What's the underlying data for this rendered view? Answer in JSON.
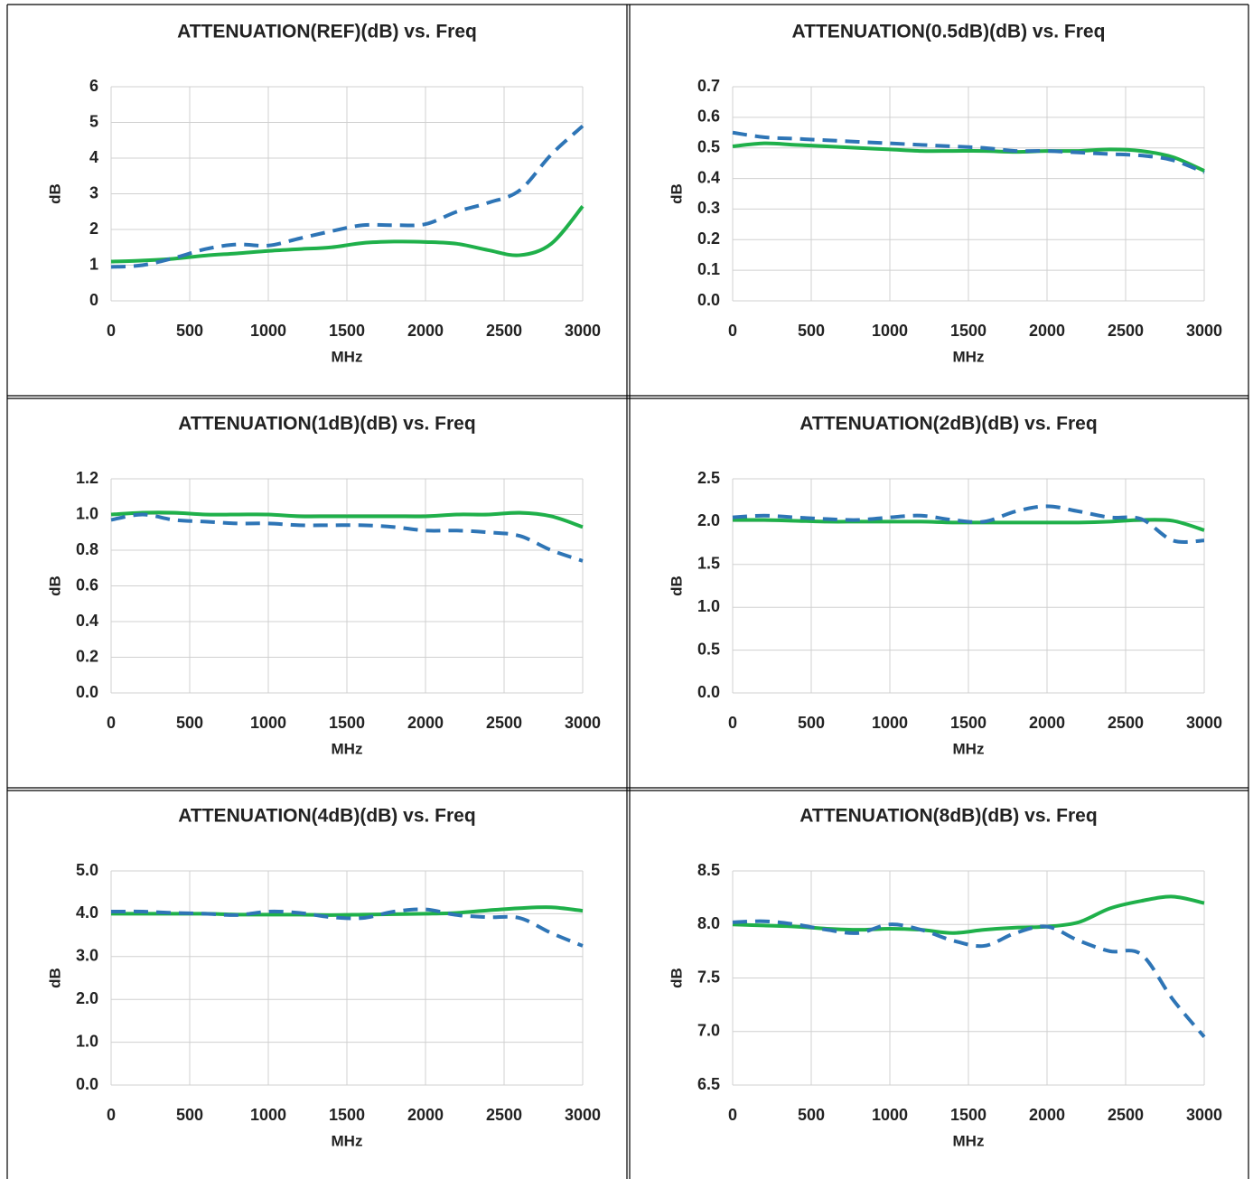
{
  "chart_data": [
    {
      "type": "line",
      "title": "ATTENUATION(REF)(dB) vs. Freq",
      "xlabel": "MHz",
      "ylabel": "dB",
      "x": [
        0,
        200,
        400,
        600,
        800,
        1000,
        1200,
        1400,
        1600,
        1800,
        2000,
        2200,
        2400,
        2600,
        2800,
        3000
      ],
      "series": [
        {
          "color": "#1fb04a",
          "dash": false,
          "values": [
            1.1,
            1.13,
            1.18,
            1.27,
            1.33,
            1.4,
            1.45,
            1.5,
            1.62,
            1.66,
            1.65,
            1.6,
            1.42,
            1.28,
            1.6,
            2.65
          ]
        },
        {
          "color": "#2e75b6",
          "dash": true,
          "values": [
            0.95,
            1.0,
            1.2,
            1.45,
            1.58,
            1.55,
            1.75,
            1.95,
            2.12,
            2.12,
            2.15,
            2.5,
            2.75,
            3.1,
            4.1,
            4.9
          ]
        }
      ],
      "xlim": [
        0,
        3000
      ],
      "xticks": [
        0,
        500,
        1000,
        1500,
        2000,
        2500,
        3000
      ],
      "ylim": [
        0,
        6
      ],
      "yticks": [
        0,
        1,
        2,
        3,
        4,
        5,
        6
      ],
      "grid": true
    },
    {
      "type": "line",
      "title": "ATTENUATION(0.5dB)(dB) vs. Freq",
      "xlabel": "MHz",
      "ylabel": "dB",
      "x": [
        0,
        200,
        400,
        600,
        800,
        1000,
        1200,
        1400,
        1600,
        1800,
        2000,
        2200,
        2400,
        2600,
        2800,
        3000
      ],
      "series": [
        {
          "color": "#1fb04a",
          "dash": false,
          "values": [
            0.505,
            0.515,
            0.51,
            0.505,
            0.5,
            0.495,
            0.49,
            0.49,
            0.49,
            0.487,
            0.49,
            0.49,
            0.495,
            0.49,
            0.47,
            0.425
          ]
        },
        {
          "color": "#2e75b6",
          "dash": true,
          "values": [
            0.55,
            0.535,
            0.53,
            0.525,
            0.52,
            0.515,
            0.51,
            0.505,
            0.5,
            0.49,
            0.49,
            0.485,
            0.48,
            0.475,
            0.46,
            0.42
          ]
        }
      ],
      "xlim": [
        0,
        3000
      ],
      "xticks": [
        0,
        500,
        1000,
        1500,
        2000,
        2500,
        3000
      ],
      "ylim": [
        0,
        0.7
      ],
      "yticks": [
        {
          "value": 0,
          "label": "0.0"
        },
        0.1,
        0.2,
        0.3,
        0.4,
        0.5,
        0.6,
        0.7
      ],
      "grid": true
    },
    {
      "type": "line",
      "title": "ATTENUATION(1dB)(dB) vs. Freq",
      "xlabel": "MHz",
      "ylabel": "dB",
      "x": [
        0,
        200,
        400,
        600,
        800,
        1000,
        1200,
        1400,
        1600,
        1800,
        2000,
        2200,
        2400,
        2600,
        2800,
        3000
      ],
      "series": [
        {
          "color": "#1fb04a",
          "dash": false,
          "values": [
            1.0,
            1.01,
            1.01,
            1.0,
            1.0,
            1.0,
            0.99,
            0.99,
            0.99,
            0.99,
            0.99,
            1.0,
            1.0,
            1.01,
            0.99,
            0.93
          ]
        },
        {
          "color": "#2e75b6",
          "dash": true,
          "values": [
            0.97,
            1.0,
            0.97,
            0.96,
            0.95,
            0.95,
            0.94,
            0.94,
            0.94,
            0.93,
            0.91,
            0.91,
            0.9,
            0.88,
            0.8,
            0.74
          ]
        }
      ],
      "xlim": [
        0,
        3000
      ],
      "xticks": [
        0,
        500,
        1000,
        1500,
        2000,
        2500,
        3000
      ],
      "ylim": [
        0,
        1.2
      ],
      "yticks": [
        {
          "value": 0,
          "label": "0.0"
        },
        0.2,
        0.4,
        0.6,
        0.8,
        {
          "value": 1,
          "label": "1.0"
        },
        1.2
      ],
      "grid": true
    },
    {
      "type": "line",
      "title": "ATTENUATION(2dB)(dB) vs. Freq",
      "xlabel": "MHz",
      "ylabel": "dB",
      "x": [
        0,
        200,
        400,
        600,
        800,
        1000,
        1200,
        1400,
        1600,
        1800,
        2000,
        2200,
        2400,
        2600,
        2800,
        3000
      ],
      "series": [
        {
          "color": "#1fb04a",
          "dash": false,
          "values": [
            2.02,
            2.02,
            2.01,
            2.0,
            2.0,
            2.0,
            2.0,
            1.99,
            1.99,
            1.99,
            1.99,
            1.99,
            2.0,
            2.02,
            2.01,
            1.9
          ]
        },
        {
          "color": "#2e75b6",
          "dash": true,
          "values": [
            2.05,
            2.07,
            2.05,
            2.03,
            2.02,
            2.05,
            2.07,
            2.02,
            2.0,
            2.12,
            2.18,
            2.12,
            2.05,
            2.03,
            1.78,
            1.78
          ]
        }
      ],
      "xlim": [
        0,
        3000
      ],
      "xticks": [
        0,
        500,
        1000,
        1500,
        2000,
        2500,
        3000
      ],
      "ylim": [
        0,
        2.5
      ],
      "yticks": [
        {
          "value": 0,
          "label": "0.0"
        },
        0.5,
        {
          "value": 1,
          "label": "1.0"
        },
        1.5,
        {
          "value": 2,
          "label": "2.0"
        },
        2.5
      ],
      "grid": true
    },
    {
      "type": "line",
      "title": "ATTENUATION(4dB)(dB) vs. Freq",
      "xlabel": "MHz",
      "ylabel": "dB",
      "x": [
        0,
        200,
        400,
        600,
        800,
        1000,
        1200,
        1400,
        1600,
        1800,
        2000,
        2200,
        2400,
        2600,
        2800,
        3000
      ],
      "series": [
        {
          "color": "#1fb04a",
          "dash": false,
          "values": [
            4.0,
            4.0,
            4.0,
            4.0,
            3.98,
            3.98,
            3.98,
            3.97,
            3.98,
            3.99,
            4.0,
            4.02,
            4.08,
            4.13,
            4.15,
            4.07
          ]
        },
        {
          "color": "#2e75b6",
          "dash": true,
          "values": [
            4.05,
            4.05,
            4.02,
            4.0,
            3.97,
            4.05,
            4.02,
            3.92,
            3.9,
            4.05,
            4.1,
            3.97,
            3.92,
            3.9,
            3.55,
            3.25
          ]
        }
      ],
      "xlim": [
        0,
        3000
      ],
      "xticks": [
        0,
        500,
        1000,
        1500,
        2000,
        2500,
        3000
      ],
      "ylim": [
        0,
        5
      ],
      "yticks": [
        {
          "value": 0,
          "label": "0.0"
        },
        {
          "value": 1,
          "label": "1.0"
        },
        {
          "value": 2,
          "label": "2.0"
        },
        {
          "value": 3,
          "label": "3.0"
        },
        {
          "value": 4,
          "label": "4.0"
        },
        {
          "value": 5,
          "label": "5.0"
        }
      ],
      "grid": true
    },
    {
      "type": "line",
      "title": "ATTENUATION(8dB)(dB) vs. Freq",
      "xlabel": "MHz",
      "ylabel": "dB",
      "x": [
        0,
        200,
        400,
        600,
        800,
        1000,
        1200,
        1400,
        1600,
        1800,
        2000,
        2200,
        2400,
        2600,
        2800,
        3000
      ],
      "series": [
        {
          "color": "#1fb04a",
          "dash": false,
          "values": [
            8.0,
            7.99,
            7.98,
            7.96,
            7.95,
            7.96,
            7.95,
            7.92,
            7.95,
            7.97,
            7.98,
            8.02,
            8.15,
            8.22,
            8.26,
            8.2
          ]
        },
        {
          "color": "#2e75b6",
          "dash": true,
          "values": [
            8.02,
            8.03,
            8.0,
            7.95,
            7.92,
            8.0,
            7.95,
            7.85,
            7.8,
            7.92,
            7.98,
            7.85,
            7.75,
            7.72,
            7.3,
            6.95
          ]
        }
      ],
      "xlim": [
        0,
        3000
      ],
      "xticks": [
        0,
        500,
        1000,
        1500,
        2000,
        2500,
        3000
      ],
      "ylim": [
        6.5,
        8.5
      ],
      "yticks": [
        6.5,
        {
          "value": 7,
          "label": "7.0"
        },
        7.5,
        {
          "value": 8,
          "label": "8.0"
        },
        8.5
      ],
      "grid": true
    }
  ]
}
